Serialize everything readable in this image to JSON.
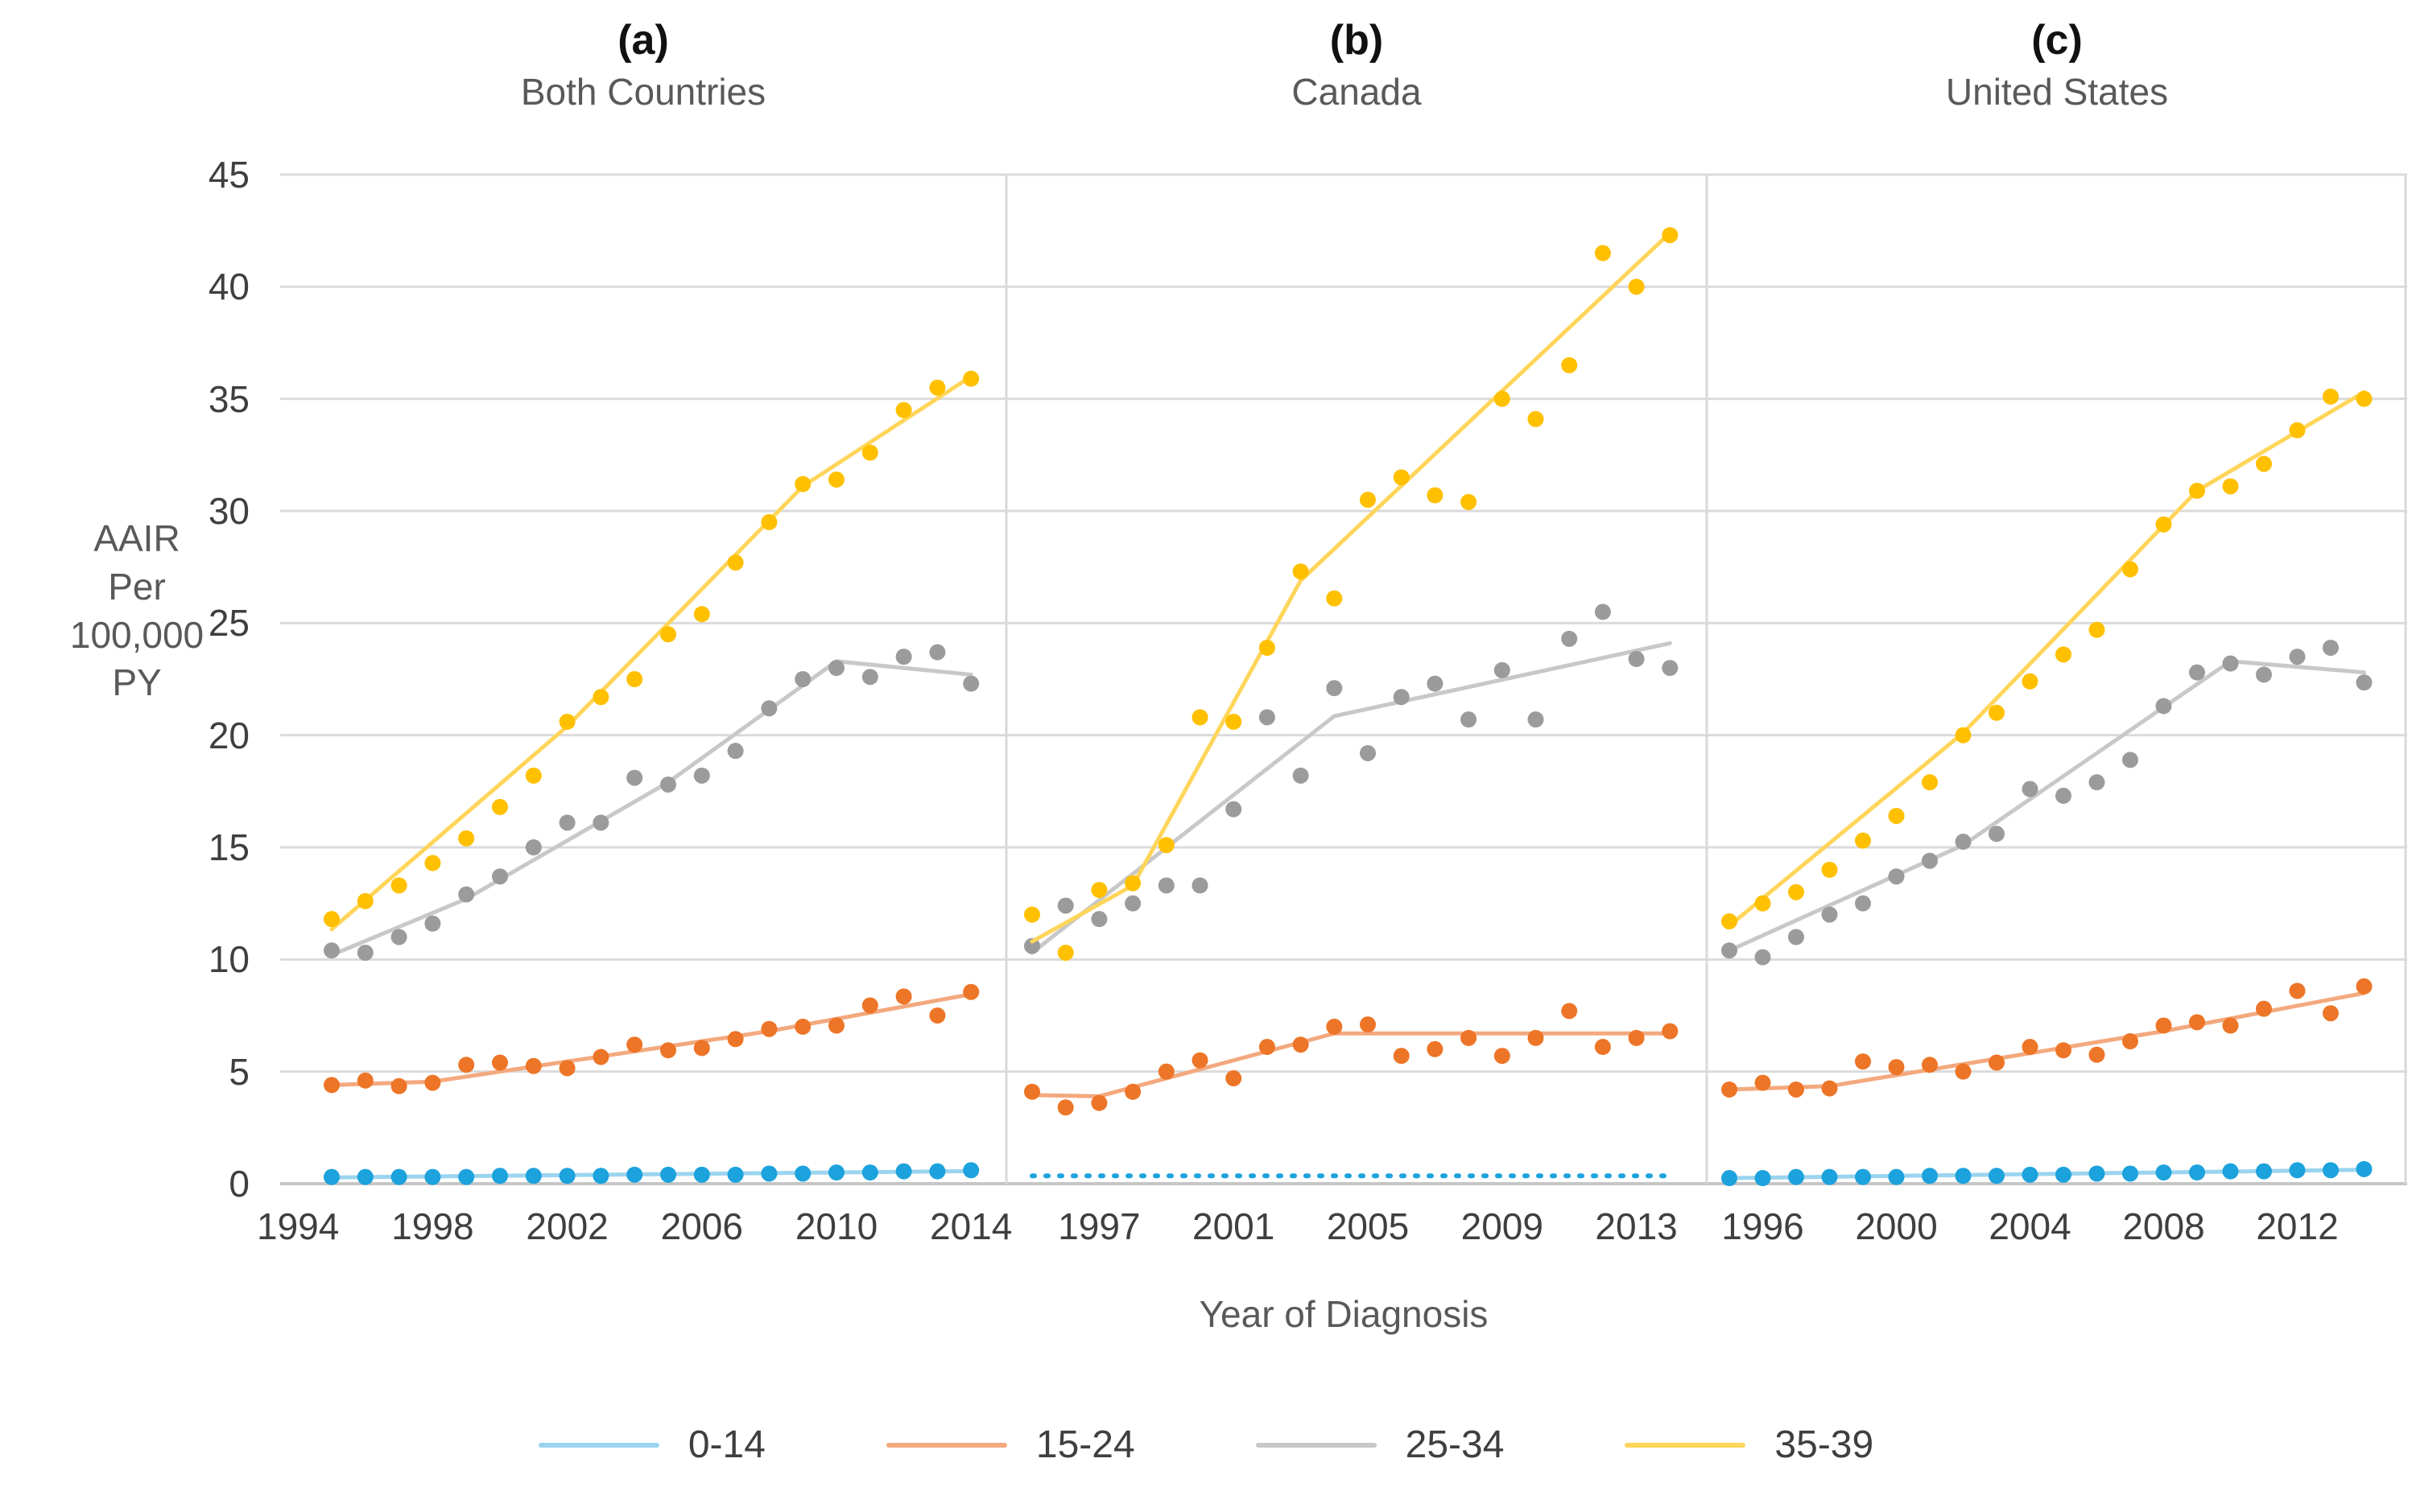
{
  "page": {
    "background": "#FFFFFF"
  },
  "y_axis": {
    "label_lines": [
      "AAIR",
      "Per",
      "100,000",
      "PY"
    ],
    "ticks": [
      45,
      40,
      35,
      30,
      25,
      20,
      15,
      10,
      5,
      0
    ],
    "min": 0,
    "max": 45
  },
  "x_axis": {
    "title": "Year of Diagnosis"
  },
  "series_meta": {
    "0-14": {
      "label": "0-14",
      "marker": "#1CA2DC",
      "line": "#9AD4EF"
    },
    "15-24": {
      "label": "15-24",
      "marker": "#ED7527",
      "line": "#F3A97E"
    },
    "25-34": {
      "label": "25-34",
      "marker": "#9B9B9B",
      "line": "#C8C8C8"
    },
    "35-39": {
      "label": "35-39",
      "marker": "#FFC000",
      "line": "#FFD55A"
    }
  },
  "legend_order": [
    "0-14",
    "15-24",
    "25-34",
    "35-39"
  ],
  "chart_data": {
    "type": "scatter",
    "title": "",
    "ylabel": "AAIR Per 100,000 PY",
    "xlabel": "Year of Diagnosis",
    "ylim": [
      0,
      45
    ],
    "grid": "horizontal",
    "legend_position": "bottom",
    "years": [
      1995,
      1996,
      1997,
      1998,
      1999,
      2000,
      2001,
      2002,
      2003,
      2004,
      2005,
      2006,
      2007,
      2008,
      2009,
      2010,
      2011,
      2012,
      2013,
      2014
    ],
    "panels": [
      {
        "label": "(a)",
        "title": "Both Countries",
        "tick_years": [
          1994,
          1998,
          2002,
          2006,
          2010,
          2014
        ],
        "series": {
          "0-14": {
            "points": [
              0.3,
              0.3,
              0.3,
              0.3,
              0.3,
              0.35,
              0.35,
              0.35,
              0.35,
              0.4,
              0.4,
              0.4,
              0.4,
              0.45,
              0.45,
              0.5,
              0.5,
              0.55,
              0.55,
              0.6
            ],
            "trend": [
              [
                1995,
                0.28
              ],
              [
                2014,
                0.56
              ]
            ]
          },
          "15-24": {
            "points": [
              4.4,
              4.6,
              4.35,
              4.5,
              5.3,
              5.4,
              5.25,
              5.15,
              5.65,
              6.2,
              5.95,
              6.05,
              6.45,
              6.9,
              7.0,
              7.05,
              7.95,
              8.35,
              7.5,
              8.55
            ],
            "trend": [
              [
                1995,
                4.4
              ],
              [
                1998,
                4.55
              ],
              [
                2008,
                6.8
              ],
              [
                2014,
                8.45
              ]
            ]
          },
          "25-34": {
            "points": [
              10.4,
              10.3,
              11.0,
              11.6,
              12.9,
              13.7,
              15.0,
              16.1,
              16.1,
              18.1,
              17.8,
              18.2,
              19.3,
              21.2,
              22.5,
              23.0,
              22.6,
              23.5,
              23.7,
              22.3
            ],
            "trend": [
              [
                1995,
                10.2
              ],
              [
                1999,
                12.7
              ],
              [
                2005,
                17.9
              ],
              [
                2010,
                23.3
              ],
              [
                2014,
                22.7
              ]
            ]
          },
          "35-39": {
            "points": [
              11.8,
              12.6,
              13.3,
              14.3,
              15.4,
              16.8,
              18.2,
              20.6,
              21.7,
              22.5,
              24.5,
              25.4,
              27.7,
              29.5,
              31.2,
              31.4,
              32.6,
              34.5,
              35.5,
              35.9
            ],
            "trend": [
              [
                1995,
                11.35
              ],
              [
                2002,
                20.4
              ],
              [
                2009,
                31.1
              ],
              [
                2014,
                36.0
              ]
            ]
          }
        }
      },
      {
        "label": "(b)",
        "title": "Canada",
        "tick_years": [
          1997,
          2001,
          2005,
          2009,
          2013
        ],
        "series": {
          "0-14": {
            "points": null,
            "dotted": true,
            "trend": [
              [
                1995,
                0.35
              ],
              [
                2014,
                0.35
              ]
            ]
          },
          "15-24": {
            "points": [
              4.1,
              3.4,
              3.6,
              4.1,
              5.0,
              5.5,
              4.7,
              6.1,
              6.2,
              7.0,
              7.1,
              5.7,
              6.0,
              6.5,
              5.7,
              6.5,
              7.7,
              6.1,
              6.5,
              6.8
            ],
            "trend": [
              [
                1995,
                3.95
              ],
              [
                1997,
                3.9
              ],
              [
                2004,
                6.7
              ],
              [
                2014,
                6.7
              ]
            ]
          },
          "25-34": {
            "points": [
              10.6,
              12.4,
              11.8,
              12.5,
              13.3,
              13.3,
              16.7,
              20.8,
              18.2,
              22.1,
              19.2,
              21.7,
              22.3,
              20.7,
              22.9,
              20.7,
              24.3,
              25.5,
              23.4,
              23.0
            ],
            "trend": [
              [
                1995,
                10.3
              ],
              [
                2004,
                20.85
              ],
              [
                2014,
                24.1
              ]
            ]
          },
          "35-39": {
            "points": [
              12.0,
              10.3,
              13.1,
              13.4,
              15.1,
              20.8,
              20.6,
              23.9,
              27.3,
              26.1,
              30.5,
              31.5,
              30.7,
              30.4,
              35.0,
              34.1,
              36.5,
              41.5,
              40.0,
              42.3
            ],
            "trend": [
              [
                1995,
                10.8
              ],
              [
                1998,
                13.3
              ],
              [
                2003,
                26.9
              ],
              [
                2014,
                42.4
              ]
            ]
          }
        }
      },
      {
        "label": "(c)",
        "title": "United States",
        "tick_years": [
          1996,
          2000,
          2004,
          2008,
          2012
        ],
        "series": {
          "0-14": {
            "points": [
              0.25,
              0.25,
              0.3,
              0.3,
              0.3,
              0.3,
              0.35,
              0.35,
              0.35,
              0.4,
              0.4,
              0.45,
              0.45,
              0.5,
              0.5,
              0.55,
              0.55,
              0.6,
              0.6,
              0.65
            ],
            "trend": [
              [
                1995,
                0.25
              ],
              [
                2014,
                0.62
              ]
            ]
          },
          "15-24": {
            "points": [
              4.2,
              4.5,
              4.2,
              4.25,
              5.45,
              5.2,
              5.3,
              5.0,
              5.4,
              6.1,
              5.95,
              5.75,
              6.35,
              7.05,
              7.2,
              7.05,
              7.8,
              8.6,
              7.6,
              8.8
            ],
            "trend": [
              [
                1995,
                4.2
              ],
              [
                1998,
                4.35
              ],
              [
                2008,
                6.8
              ],
              [
                2014,
                8.5
              ]
            ]
          },
          "25-34": {
            "points": [
              10.4,
              10.1,
              11.0,
              12.0,
              12.5,
              13.7,
              14.4,
              15.25,
              15.6,
              17.6,
              17.3,
              17.9,
              18.9,
              21.3,
              22.8,
              23.2,
              22.7,
              23.5,
              23.9,
              22.35
            ],
            "trend": [
              [
                1995,
                10.4
              ],
              [
                2002,
                15.1
              ],
              [
                2010,
                23.3
              ],
              [
                2014,
                22.8
              ]
            ]
          },
          "35-39": {
            "points": [
              11.7,
              12.5,
              13.0,
              14.0,
              15.3,
              16.4,
              17.9,
              20.0,
              21.0,
              22.4,
              23.6,
              24.7,
              27.4,
              29.4,
              30.9,
              31.1,
              32.1,
              33.6,
              35.1,
              35.0
            ],
            "trend": [
              [
                1995,
                11.5
              ],
              [
                2002,
                20.1
              ],
              [
                2009,
                30.9
              ],
              [
                2014,
                35.3
              ]
            ]
          }
        }
      }
    ]
  }
}
